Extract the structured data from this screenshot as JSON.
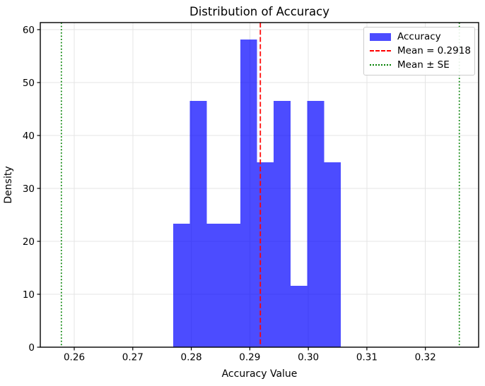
{
  "chart_data": {
    "type": "bar",
    "subtype": "histogram",
    "title": "Distribution of Accuracy",
    "xlabel": "Accuracy Value",
    "ylabel": "Density",
    "bin_edges": [
      0.2769,
      0.27977,
      0.28263,
      0.2855,
      0.28836,
      0.29123,
      0.29409,
      0.29696,
      0.29982,
      0.30269,
      0.30555
    ],
    "densities": [
      23.3,
      46.5,
      23.3,
      23.3,
      58.1,
      34.9,
      46.5,
      11.6,
      46.5,
      34.9
    ],
    "mean": 0.2918,
    "mean_minus_se": 0.2578,
    "mean_plus_se": 0.3258,
    "x_ticks": [
      0.26,
      0.27,
      0.28,
      0.29,
      0.3,
      0.31,
      0.32
    ],
    "y_ticks": [
      0,
      10,
      20,
      30,
      40,
      50,
      60
    ],
    "xlim": [
      0.2542,
      0.3291
    ],
    "ylim": [
      0,
      61.33
    ],
    "grid": true,
    "legend_position": "upper right",
    "colors": {
      "bar": "#0000FF",
      "bar_alpha": 0.7,
      "mean_line": "#FF0000",
      "se_line": "#008000",
      "grid": "#E4E4E4",
      "spine": "#000000"
    }
  },
  "legend": {
    "items": [
      {
        "label": "Accuracy",
        "sample": "blue-patch"
      },
      {
        "label": "Mean = 0.2918",
        "sample": "red-dashed-line"
      },
      {
        "label": "Mean ± SE",
        "sample": "green-dotted-line"
      }
    ]
  }
}
